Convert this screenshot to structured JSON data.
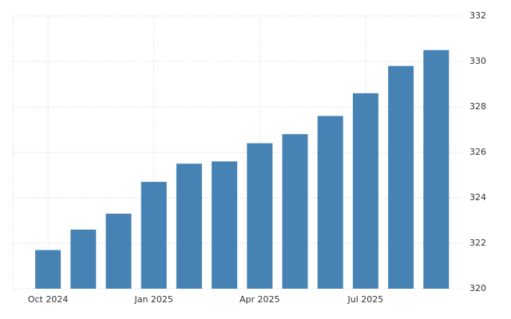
{
  "chart_data": {
    "type": "bar",
    "categories": [
      "Oct 2024",
      null,
      null,
      "Jan 2025",
      null,
      null,
      "Apr 2025",
      null,
      null,
      "Jul 2025",
      null,
      null
    ],
    "values": [
      321.7,
      322.6,
      323.3,
      324.7,
      325.5,
      325.6,
      326.4,
      326.8,
      327.6,
      328.6,
      329.8,
      330.5
    ],
    "color": "#4682b4",
    "ylim": [
      320,
      332
    ],
    "yticks": [
      320,
      322,
      324,
      326,
      328,
      330,
      332
    ],
    "grid": true
  }
}
